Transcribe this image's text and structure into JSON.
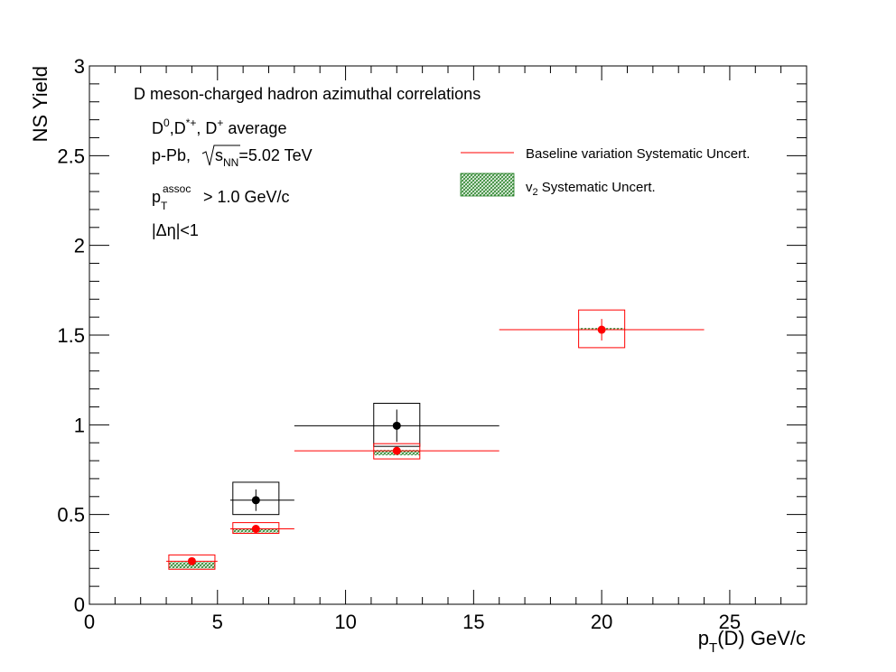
{
  "chart_data": {
    "type": "scatter",
    "xlabel_main": "p",
    "xlabel_sub": "T",
    "xlabel_rest": "(D) GeV/c",
    "ylabel": "NS Yield",
    "xlim": [
      0,
      28
    ],
    "ylim": [
      0,
      3
    ],
    "x_ticks": [
      0,
      5,
      10,
      15,
      20,
      25
    ],
    "y_ticks": [
      0,
      0.5,
      1,
      1.5,
      2,
      2.5,
      3
    ],
    "y_tick_labels": [
      "0",
      "0.5",
      "1",
      "1.5",
      "2",
      "2.5",
      "3"
    ],
    "annotations": {
      "line1": "D meson-charged hadron azimuthal correlations",
      "line2_a": "D",
      "line2_sup1": "0",
      "line2_b": ",D",
      "line2_sup2": "*+",
      "line2_c": ", D",
      "line2_sup3": "+",
      "line2_d": " average",
      "line3_a": "p-Pb, ",
      "line3_s": "s",
      "line3_sub": "NN",
      "line3_b": "=5.02 TeV",
      "line4_p": "p",
      "line4_sub": "T",
      "line4_sup": "assoc",
      "line4_rest": " > 1.0 GeV/c",
      "line5": "|Δη|<1"
    },
    "legend": {
      "position": "top-right",
      "entries": [
        {
          "label": "Baseline variation Systematic Uncert.",
          "color": "#ff0000",
          "style": "line"
        },
        {
          "label_main": "v",
          "label_sub": "2",
          "label_rest": " Systematic Uncert.",
          "color": "#1a7a1a",
          "style": "hatched-box"
        }
      ]
    },
    "series": [
      {
        "color": "#000000",
        "points": [
          {
            "x": 6.5,
            "y": 0.58,
            "xerr": [
              1.0,
              1.5
            ],
            "yerr": 0.06,
            "sys_box": [
              5.6,
              7.4,
              0.5,
              0.68
            ]
          },
          {
            "x": 12.0,
            "y": 0.995,
            "xerr": [
              4.0,
              4.0
            ],
            "yerr": 0.09,
            "sys_box": [
              11.1,
              12.9,
              0.88,
              1.12
            ]
          }
        ]
      },
      {
        "color": "#ff0000",
        "points": [
          {
            "x": 4.0,
            "y": 0.24,
            "xerr": [
              1.0,
              1.0
            ],
            "yerr": 0.01,
            "sys_box": [
              3.1,
              4.9,
              0.195,
              0.275
            ],
            "v2_box": [
              3.1,
              4.9,
              0.2,
              0.235
            ]
          },
          {
            "x": 6.5,
            "y": 0.42,
            "xerr": [
              1.0,
              1.5
            ],
            "yerr": 0.01,
            "sys_box": [
              5.6,
              7.4,
              0.395,
              0.455
            ],
            "v2_box": [
              5.6,
              7.4,
              0.4,
              0.42
            ]
          },
          {
            "x": 12.0,
            "y": 0.855,
            "xerr": [
              4.0,
              4.0
            ],
            "yerr": 0.02,
            "sys_box": [
              11.1,
              12.9,
              0.81,
              0.895
            ],
            "v2_box": [
              11.1,
              12.9,
              0.83,
              0.86
            ]
          },
          {
            "x": 20.0,
            "y": 1.53,
            "xerr": [
              4.0,
              4.0
            ],
            "yerr": 0.06,
            "sys_box": [
              19.1,
              20.9,
              1.43,
              1.64
            ],
            "v2_box": [
              19.1,
              20.9,
              1.53,
              1.54
            ]
          }
        ]
      }
    ]
  }
}
